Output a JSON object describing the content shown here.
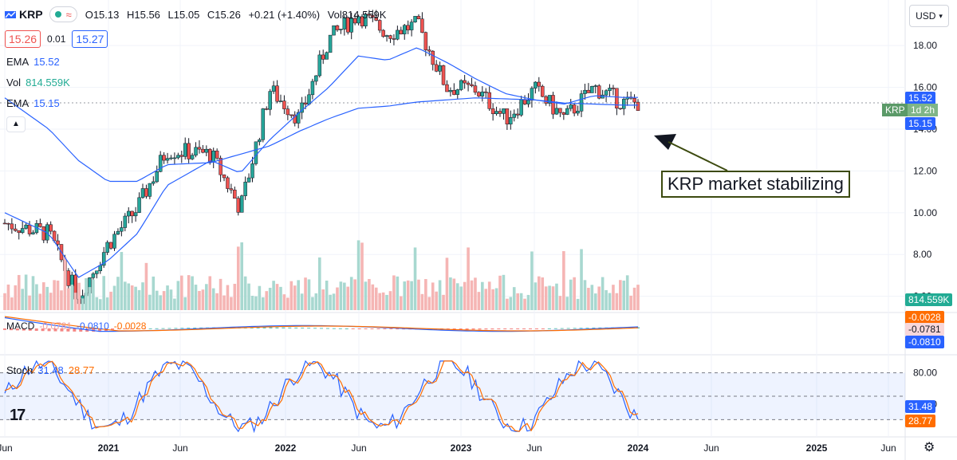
{
  "header": {
    "symbol": "KRP",
    "open": "O15.13",
    "high": "H15.56",
    "low": "L15.05",
    "close": "C15.26",
    "change": "+0.21 (+1.40%)",
    "volume": "Vol814.559K"
  },
  "quote": {
    "bid": "15.26",
    "spread": "0.01",
    "ask": "15.27"
  },
  "indicators": {
    "ema1_label": "EMA",
    "ema1_value": "15.52",
    "vol_label": "Vol",
    "vol_value": "814.559K",
    "ema2_label": "EMA",
    "ema2_value": "15.15",
    "macd_label": "MACD",
    "macd_v1": "-0.0781",
    "macd_v2": "-0.0810",
    "macd_v3": "-0.0028",
    "stoch_label": "Stoch",
    "stoch_k": "31.48",
    "stoch_d": "28.77"
  },
  "currency": "USD",
  "annotation": "KRP market stabilizing",
  "price_tags": {
    "ema1": "15.52",
    "last_symbol": "KRP",
    "last_time": "1d 2h",
    "ema2": "15.15",
    "volume": "814.559K",
    "macd_hist": "-0.0028",
    "macd_line": "-0.0781",
    "macd_signal": "-0.0810",
    "stoch_k": "31.48",
    "stoch_d": "28.77"
  },
  "colors": {
    "up": "#26a69a",
    "down": "#ef5350",
    "ema_fast": "#2962ff",
    "ema_slow": "#2962ff",
    "macd": "#2962ff",
    "signal": "#ff6d00",
    "stoch_k": "#2962ff",
    "stoch_d": "#ff6d00",
    "annotation_border": "#3c4a0f"
  },
  "chart_data": {
    "type": "line",
    "title": "KRP",
    "price_axis_ticks": [
      "18.00",
      "16.00",
      "14.00",
      "12.00",
      "10.00",
      "8.00",
      "6.00"
    ],
    "price_axis_values": [
      18,
      16,
      14,
      12,
      10,
      8,
      6
    ],
    "stoch_axis_ticks": [
      "80.00",
      "40.00"
    ],
    "time_axis_ticks": [
      "Jun",
      "2021",
      "Jun",
      "2022",
      "Jun",
      "2023",
      "Jun",
      "2024",
      "Jun",
      "2025",
      "Jun"
    ],
    "x": [
      "2020-06",
      "2020-09",
      "2020-11",
      "2021-01",
      "2021-03",
      "2021-05",
      "2021-08",
      "2021-10",
      "2021-12",
      "2022-02",
      "2022-04",
      "2022-06",
      "2022-08",
      "2022-10",
      "2022-12",
      "2023-02",
      "2023-04",
      "2023-06",
      "2023-08",
      "2023-10",
      "2023-12"
    ],
    "series": [
      {
        "name": "KRP close",
        "values": [
          9.5,
          9.0,
          5.9,
          8.5,
          10.2,
          13.0,
          12.8,
          10.2,
          15.9,
          14.5,
          18.3,
          19.5,
          18.6,
          19.0,
          16.0,
          15.9,
          14.5,
          15.9,
          14.5,
          16.0,
          15.26
        ]
      },
      {
        "name": "EMA",
        "values": [
          10.0,
          9.0,
          6.9,
          7.7,
          9.0,
          11.3,
          12.5,
          11.9,
          13.5,
          14.8,
          16.0,
          17.5,
          17.3,
          17.9,
          17.2,
          16.4,
          15.7,
          15.4,
          15.2,
          15.6,
          15.52
        ]
      },
      {
        "name": "EMA",
        "values": [
          15.5,
          14.0,
          12.5,
          11.5,
          11.5,
          12.3,
          12.4,
          12.8,
          13.2,
          13.9,
          14.5,
          15.0,
          15.1,
          15.3,
          15.4,
          15.5,
          15.45,
          15.4,
          15.25,
          15.2,
          15.15
        ]
      }
    ],
    "ylim": [
      5.3,
      19.8
    ],
    "grid": true,
    "legend": "top-left"
  }
}
